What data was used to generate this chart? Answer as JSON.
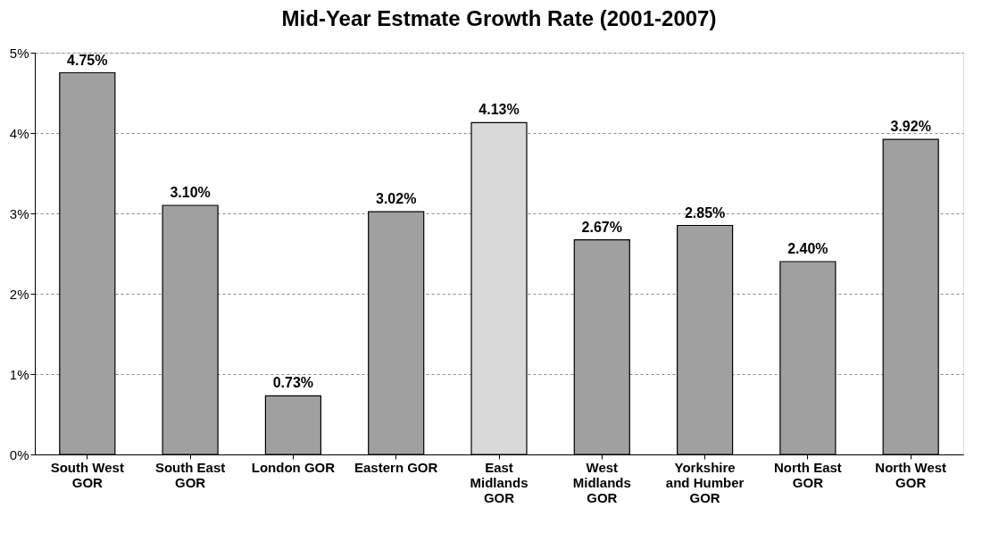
{
  "chart_data": {
    "type": "bar",
    "title": "Mid-Year Estmate Growth Rate (2001-2007)",
    "categories": [
      "South West GOR",
      "South East GOR",
      "London GOR",
      "Eastern GOR",
      "East Midlands GOR",
      "West Midlands GOR",
      "Yorkshire and Humber GOR",
      "North East GOR",
      "North West GOR"
    ],
    "values": [
      4.75,
      3.1,
      0.73,
      3.02,
      4.13,
      2.67,
      2.85,
      2.4,
      3.92
    ],
    "colors": [
      "#a0a0a0",
      "#a0a0a0",
      "#a0a0a0",
      "#a0a0a0",
      "#d9d9d9",
      "#a0a0a0",
      "#a0a0a0",
      "#a0a0a0",
      "#a0a0a0"
    ],
    "value_labels": [
      "4.75%",
      "3.10%",
      "0.73%",
      "3.02%",
      "4.13%",
      "2.67%",
      "2.85%",
      "2.40%",
      "3.92%"
    ],
    "ylim": [
      0,
      5
    ],
    "yticks": [
      {
        "value": 0,
        "label": "0%"
      },
      {
        "value": 1,
        "label": "1%"
      },
      {
        "value": 2,
        "label": "2%"
      },
      {
        "value": 3,
        "label": "3%"
      },
      {
        "value": 4,
        "label": "4%"
      },
      {
        "value": 5,
        "label": "5%"
      }
    ],
    "grid": "y"
  }
}
